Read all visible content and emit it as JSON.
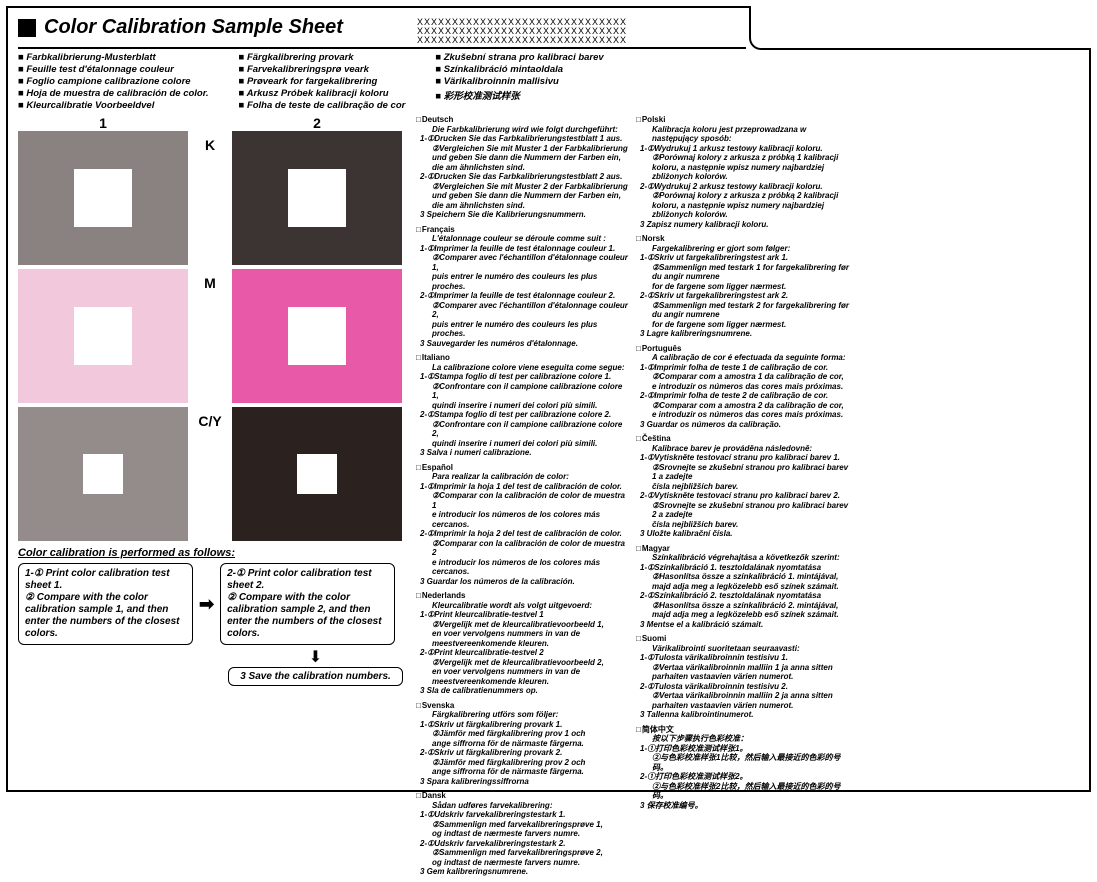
{
  "title": "Color Calibration Sample Sheet",
  "xrow": "XXXXXXXXXXXXXXXXXXXXXXXXXXXXXX",
  "langNames": {
    "c1": [
      "Farbkalibrierung-Musterblatt",
      "Feuille test d'étalonnage couleur",
      "Foglio campione calibrazione colore",
      "Hoja de muestra de calibración de color.",
      "Kleurcalibratie Voorbeeldvel"
    ],
    "c2": [
      "Färgkalibrering provark",
      "Farvekalibreringsprø veark",
      "Prøveark for fargekalibrering",
      "Arkusz Próbek kalibracji koloru",
      "Folha de teste de calibração de cor"
    ],
    "c3": [
      "Zkušební strana pro kalibraci barev",
      "Színkalibráció mintaoldala",
      "Värikalibroinnin mallisivu",
      "彩形校准测试样张"
    ]
  },
  "swatches": {
    "h1": "1",
    "h2": "2",
    "rows": [
      {
        "label": "K",
        "c1": "#8a8280",
        "c2": "#3b3432"
      },
      {
        "label": "M",
        "c1": "#f2c9dc",
        "c2": "#e85aa8"
      },
      {
        "label": "C/Y",
        "c1": "#948c8a",
        "c2": "#2b2220"
      }
    ]
  },
  "instr": {
    "title": "Color calibration is performed as follows:",
    "box1": "1-① Print color calibration test sheet 1.\n② Compare with the color calibration sample 1, and then enter the numbers of the closest colors.",
    "box2": "2-① Print color calibration test sheet 2.\n② Compare with the color calibration sample 2, and then enter the numbers of the closest colors.",
    "save": "3  Save the calibration numbers."
  },
  "langsLeft": [
    {
      "t": "Deutsch",
      "lines": [
        "Die Farbkalibrierung wird wie folgt durchgeführt:",
        "1-①Drucken Sie das Farbkalibrierungstestblatt 1 aus.",
        "②Vergleichen Sie mit Muster 1 der Farbkalibrierung",
        "und geben Sie dann die Nummern der Farben ein,",
        "die am ähnlichsten sind.",
        "2-①Drucken Sie das Farbkalibrierungstestblatt 2 aus.",
        "②Vergleichen Sie mit Muster 2 der Farbkalibrierung",
        "und geben Sie dann die Nummern der Farben ein,",
        "die am ähnlichsten sind.",
        "3 Speichern Sie die Kalibrierungsnummern."
      ]
    },
    {
      "t": "Français",
      "lines": [
        "L'étalonnage couleur se déroule comme suit :",
        "1-①Imprimer la feuille de test étalonnage couleur 1.",
        "②Comparer avec l'échantillon d'étalonnage couleur 1,",
        "puis entrer le numéro des couleurs les plus proches.",
        "2-①Imprimer la feuille de test étalonnage couleur 2.",
        "②Comparer avec l'échantillon d'étalonnage couleur 2,",
        "puis entrer le numéro des couleurs les plus proches.",
        "3 Sauvegarder les numéros d'étalonnage."
      ]
    },
    {
      "t": "Italiano",
      "lines": [
        "La calibrazione colore viene eseguita come segue:",
        "1-①Stampa foglio di test per calibrazione colore 1.",
        "②Confrontare con il campione calibrazione colore 1,",
        "quindi inserire i numeri dei colori più simili.",
        "2-①Stampa foglio di test per calibrazione colore 2.",
        "②Confrontare con il campione calibrazione colore 2,",
        "quindi inserire i numeri dei colori più simili.",
        "3 Salva i numeri calibrazione."
      ]
    },
    {
      "t": "Español",
      "lines": [
        "Para realizar la calibración de color:",
        "1-①Imprimir la hoja 1 del test de calibración de color.",
        "②Comparar con la calibración de color de muestra 1",
        "e introducir los números de los colores más cercanos.",
        "2-①Imprimir la hoja 2 del test de calibración de color.",
        "②Comparar con la calibración de color de muestra 2",
        "e introducir los números de los colores más cercanos.",
        "3 Guardar los números de la calibración."
      ]
    },
    {
      "t": "Nederlands",
      "lines": [
        "Kleurcalibratie wordt als volgt uitgevoerd:",
        "1-①Print kleurcalibratie-testvel 1",
        "②Vergelijk met de kleurcalibratievoorbeeld 1,",
        "en voer vervolgens nummers in van de meestvereenkomende kleuren.",
        "2-①Print kleurcalibratie-testvel 2",
        "②Vergelijk met de kleurcalibratievoorbeeld 2,",
        "en voer vervolgens nummers in van de meestvereenkomende kleuren.",
        "3 Sla de calibratienummers op."
      ]
    },
    {
      "t": "Svenska",
      "lines": [
        "Färgkalibrering utförs som följer:",
        "1-①Skriv ut färgkalibrering provark 1.",
        "②Jämför med färgkalibrering prov 1 och",
        "ange siffrorna för de närmaste färgerna.",
        "2-①Skriv ut färgkalibrering provark 2.",
        "②Jämför med färgkalibrering prov 2 och",
        "ange siffrorna för de närmaste färgerna.",
        "3 Spara kalibreringssiffrorna"
      ]
    },
    {
      "t": "Dansk",
      "lines": [
        "Sådan udføres farvekalibrering:",
        "1-①Udskriv farvekalibreringstestark 1.",
        "②Sammenlign med farvekalibreringsprøve 1,",
        "og indtast de nærmeste farvers numre.",
        "2-①Udskriv farvekalibreringstestark 2.",
        "②Sammenlign med farvekalibreringsprøve 2,",
        "og indtast de nærmeste farvers numre.",
        "3 Gem kalibreringsnumrene."
      ]
    }
  ],
  "langsRight": [
    {
      "t": "Polski",
      "lines": [
        "Kalibracja koloru jest przeprowadzana w następujący sposób:",
        "1-①Wydrukuj 1 arkusz testowy kalibracji koloru.",
        "②Porównaj kolory z arkusza z próbką 1 kalibracji",
        "koloru, a następnie wpisz numery najbardziej",
        "zbliżonych kolorów.",
        "2-①Wydrukuj 2 arkusz testowy kalibracji koloru.",
        "②Porównaj kolory z arkusza z próbką 2 kalibracji",
        "koloru, a następnie wpisz numery najbardziej",
        "zbliżonych kolorów.",
        "3 Zapisz numery kalibracji koloru."
      ]
    },
    {
      "t": "Norsk",
      "lines": [
        "Fargekalibrering er gjort som følger:",
        "1-①Skriv ut fargekalibreringstest ark 1.",
        "②Sammenlign med testark 1 for fargekalibrering før du angir numrene",
        "for de fargene som ligger nærmest.",
        "2-①Skriv ut fargekalibreringstest ark 2.",
        "②Sammenlign med testark 2 for fargekalibrering før du angir numrene",
        "for de fargene som ligger nærmest.",
        "3 Lagre kalibreringsnumrene."
      ]
    },
    {
      "t": "Português",
      "lines": [
        "A calibração de cor é efectuada da seguinte forma:",
        "1-①Imprimir folha de teste 1 de calibração de cor.",
        "②Comparar com a amostra 1 da calibração de cor,",
        "e introduzir os números das cores mais próximas.",
        "2-①Imprimir folha de teste 2 de calibração de cor.",
        "②Comparar com a amostra 2 da calibração de cor,",
        "e introduzir os números das cores mais próximas.",
        "3 Guardar os números da calibração."
      ]
    },
    {
      "t": "Čeština",
      "lines": [
        "Kalibrace barev je prováděna následovně:",
        "1-①Vytiskněte testovací stranu pro kalibraci barev 1.",
        "②Srovnejte se zkušební stranou pro kalibraci barev 1 a zadejte",
        "čísla nejbližších barev.",
        "2-①Vytiskněte testovací stranu pro kalibraci barev 2.",
        "②Srovnejte se zkušební stranou pro kalibraci barev 2 a zadejte",
        "čísla nejbližších barev.",
        "3 Uložte kalibrační čísla."
      ]
    },
    {
      "t": "Magyar",
      "lines": [
        "Színkalibráció végrehajtása a következők szerint:",
        "1-①Színkalibráció 1. tesztoldalának nyomtatása",
        "②Hasonlítsa össze a színkalibráció 1. mintájával,",
        "majd adja meg a legközelebb eső színek számait.",
        "2-①Színkalibráció 2. tesztoldalának nyomtatása",
        "②Hasonlítsa össze a színkalibráció 2. mintájával,",
        "majd adja meg a legközelebb eső színek számait.",
        "3 Mentse el a kalibráció számait."
      ]
    },
    {
      "t": "Suomi",
      "lines": [
        "Värikalibrointi suoritetaan seuraavasti:",
        "1-①Tulosta värikalibroinnin testisivu 1.",
        "②Vertaa värikalibroinnin malliin 1 ja anna sitten",
        "parhaiten vastaavien värien numerot.",
        "2-①Tulosta värikalibroinnin testisivu 2.",
        "②Vertaa värikalibroinnin malliin 2 ja anna sitten",
        "parhaiten vastaavien värien numerot.",
        "3 Tallenna kalibrointinumerot."
      ]
    },
    {
      "t": "简体中文",
      "lines": [
        "按以下步骤执行色彩校准：",
        "1-①打印色彩校准测试样张1。",
        "②与色彩校准样张1比较，然后输入最接近的色彩的号码。",
        "2-①打印色彩校准测试样张2。",
        "②与色彩校准样张2比较，然后输入最接近的色彩的号码。",
        "3 保存校准编号。"
      ]
    }
  ]
}
